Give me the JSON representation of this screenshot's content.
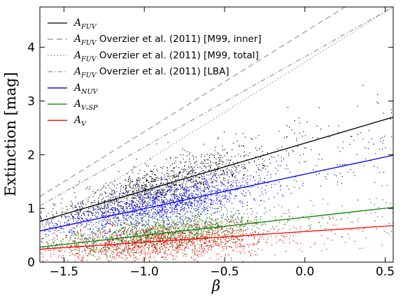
{
  "chart_data": {
    "type": "scatter",
    "xlabel": "β",
    "ylabel": "Extinction [mag]",
    "xlim": [
      -1.65,
      0.55
    ],
    "ylim": [
      0,
      4.75
    ],
    "x_ticks": [
      "−1.5",
      "−1.0",
      "−0.5",
      "0.0",
      "0.5"
    ],
    "x_tick_values": [
      -1.5,
      -1.0,
      -0.5,
      0.0,
      0.5
    ],
    "y_ticks": [
      "0",
      "1",
      "2",
      "3",
      "4"
    ],
    "y_tick_values": [
      0,
      1,
      2,
      3,
      4
    ],
    "grid": false,
    "legend_placement": "top-left",
    "legend": [
      {
        "sym": "A",
        "sub": "FUV",
        "text": "",
        "color": "#000000",
        "style": "solid"
      },
      {
        "sym": "A",
        "sub": "FUV",
        "text": " Overzier et al. (2011) [M99, inner]",
        "color": "#999999",
        "style": "dashed"
      },
      {
        "sym": "A",
        "sub": "FUV",
        "text": " Overzier et al. (2011) [M99, total]",
        "color": "#999999",
        "style": "dotted"
      },
      {
        "sym": "A",
        "sub": "FUV",
        "text": " Overzier et al. (2011) [LBA]",
        "color": "#999999",
        "style": "dashdot"
      },
      {
        "sym": "A",
        "sub": "NUV",
        "text": "",
        "color": "#0000ff",
        "style": "solid"
      },
      {
        "sym": "A",
        "sub": "VₑSP",
        "text": "",
        "color": "#008000",
        "style": "solid"
      },
      {
        "sym": "A",
        "sub": "V",
        "text": "",
        "color": "#ff0000",
        "style": "solid"
      }
    ],
    "series": [
      {
        "color": "#000000",
        "kind": "fit",
        "x": [
          -1.65,
          0.55
        ],
        "y": [
          0.76,
          2.7
        ]
      },
      {
        "color": "#0000ff",
        "kind": "fit",
        "x": [
          -1.65,
          0.55
        ],
        "y": [
          0.58,
          1.99
        ]
      },
      {
        "color": "#008000",
        "kind": "fit",
        "x": [
          -1.65,
          0.55
        ],
        "y": [
          0.28,
          1.02
        ]
      },
      {
        "color": "#ff0000",
        "kind": "fit",
        "x": [
          -1.65,
          0.55
        ],
        "y": [
          0.24,
          0.68
        ]
      },
      {
        "color": "#999999",
        "kind": "relation",
        "style": "dashed",
        "x": [
          -1.65,
          0.25
        ],
        "y": [
          1.22,
          4.75
        ]
      },
      {
        "color": "#999999",
        "kind": "relation",
        "style": "dashdot",
        "x": [
          -1.65,
          0.55
        ],
        "y": [
          1.05,
          4.75
        ]
      },
      {
        "color": "#999999",
        "kind": "relation",
        "style": "dotted",
        "x": [
          -1.65,
          0.55
        ],
        "y": [
          0.65,
          4.75
        ]
      }
    ],
    "scatter_clouds": [
      {
        "color": "#000000",
        "center_x": -0.9,
        "center_y": 1.55,
        "n": 1400
      },
      {
        "color": "#0000ff",
        "center_x": -0.9,
        "center_y": 1.15,
        "n": 1400
      },
      {
        "color": "#008000",
        "center_x": -0.9,
        "center_y": 0.55,
        "n": 1400
      },
      {
        "color": "#ff0000",
        "center_x": -0.9,
        "center_y": 0.42,
        "n": 1400
      }
    ]
  }
}
